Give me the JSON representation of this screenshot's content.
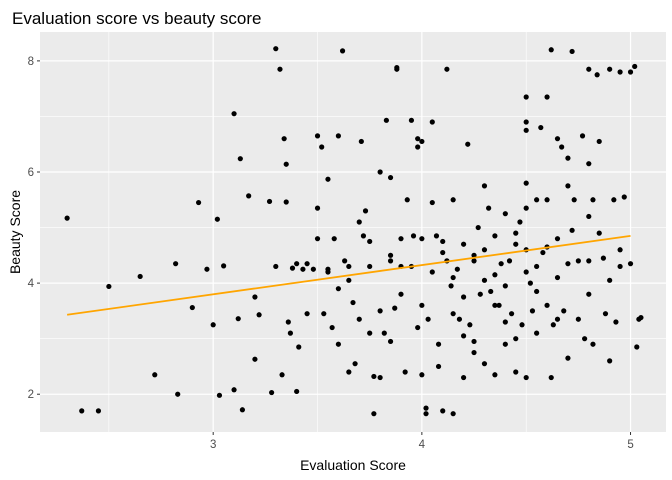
{
  "chart_data": {
    "type": "scatter",
    "title": "Evaluation score vs beauty score",
    "xlabel": "Evaluation Score",
    "ylabel": "Beauty Score",
    "xlim": [
      2.17,
      5.17
    ],
    "ylim": [
      1.32,
      8.52
    ],
    "x_ticks": [
      3,
      4,
      5
    ],
    "y_ticks": [
      2,
      4,
      6,
      8
    ],
    "x_tick_labels": [
      "3",
      "4",
      "5"
    ],
    "y_tick_labels": [
      "2",
      "4",
      "6",
      "8"
    ],
    "grid": true,
    "background": "#ebebeb",
    "grid_color": "#ffffff",
    "point_color": "#000000",
    "trend_color": "#ffa500",
    "trend_line": {
      "x": [
        2.3,
        5.0
      ],
      "y": [
        3.43,
        4.85
      ]
    },
    "points": [
      [
        2.3,
        5.17
      ],
      [
        2.37,
        1.7
      ],
      [
        2.45,
        1.7
      ],
      [
        2.5,
        3.94
      ],
      [
        2.65,
        4.12
      ],
      [
        2.72,
        2.35
      ],
      [
        2.82,
        4.35
      ],
      [
        2.83,
        2.0
      ],
      [
        2.9,
        3.56
      ],
      [
        2.93,
        5.45
      ],
      [
        2.97,
        4.25
      ],
      [
        3.0,
        3.25
      ],
      [
        3.02,
        5.15
      ],
      [
        3.03,
        1.98
      ],
      [
        3.05,
        4.31
      ],
      [
        3.1,
        2.08
      ],
      [
        3.1,
        7.05
      ],
      [
        3.12,
        3.36
      ],
      [
        3.13,
        6.24
      ],
      [
        3.14,
        1.72
      ],
      [
        3.17,
        5.57
      ],
      [
        3.2,
        3.75
      ],
      [
        3.2,
        2.63
      ],
      [
        3.22,
        3.43
      ],
      [
        3.27,
        5.47
      ],
      [
        3.28,
        2.03
      ],
      [
        3.3,
        4.3
      ],
      [
        3.3,
        8.22
      ],
      [
        3.32,
        7.85
      ],
      [
        3.33,
        2.35
      ],
      [
        3.34,
        6.6
      ],
      [
        3.35,
        6.14
      ],
      [
        3.35,
        5.46
      ],
      [
        3.36,
        3.3
      ],
      [
        3.37,
        3.1
      ],
      [
        3.38,
        4.27
      ],
      [
        3.4,
        4.35
      ],
      [
        3.4,
        2.05
      ],
      [
        3.41,
        2.85
      ],
      [
        3.43,
        4.25
      ],
      [
        3.45,
        4.35
      ],
      [
        3.45,
        3.45
      ],
      [
        3.48,
        4.25
      ],
      [
        3.5,
        5.35
      ],
      [
        3.5,
        4.8
      ],
      [
        3.5,
        6.65
      ],
      [
        3.52,
        6.45
      ],
      [
        3.53,
        3.45
      ],
      [
        3.55,
        4.25
      ],
      [
        3.55,
        5.87
      ],
      [
        3.57,
        3.2
      ],
      [
        3.58,
        4.8
      ],
      [
        3.6,
        6.65
      ],
      [
        3.6,
        2.9
      ],
      [
        3.62,
        8.18
      ],
      [
        3.63,
        4.4
      ],
      [
        3.65,
        2.4
      ],
      [
        3.65,
        4.3
      ],
      [
        3.67,
        3.65
      ],
      [
        3.68,
        2.55
      ],
      [
        3.7,
        3.35
      ],
      [
        3.71,
        6.55
      ],
      [
        3.72,
        4.85
      ],
      [
        3.73,
        5.3
      ],
      [
        3.75,
        3.1
      ],
      [
        3.75,
        4.75
      ],
      [
        3.77,
        2.32
      ],
      [
        3.77,
        1.65
      ],
      [
        3.8,
        6.0
      ],
      [
        3.8,
        2.3
      ],
      [
        3.82,
        3.1
      ],
      [
        3.83,
        6.93
      ],
      [
        3.85,
        4.4
      ],
      [
        3.85,
        5.9
      ],
      [
        3.87,
        3.55
      ],
      [
        3.88,
        7.88
      ],
      [
        3.88,
        7.85
      ],
      [
        3.9,
        4.3
      ],
      [
        3.9,
        3.8
      ],
      [
        3.92,
        2.4
      ],
      [
        3.93,
        5.5
      ],
      [
        3.95,
        6.93
      ],
      [
        3.96,
        4.85
      ],
      [
        3.98,
        6.6
      ],
      [
        3.98,
        6.45
      ],
      [
        4.0,
        4.8
      ],
      [
        4.0,
        6.55
      ],
      [
        4.0,
        2.35
      ],
      [
        4.02,
        1.75
      ],
      [
        4.02,
        1.65
      ],
      [
        4.03,
        3.35
      ],
      [
        4.05,
        5.45
      ],
      [
        4.05,
        6.9
      ],
      [
        4.07,
        4.85
      ],
      [
        4.08,
        2.9
      ],
      [
        4.08,
        2.5
      ],
      [
        4.1,
        4.75
      ],
      [
        4.1,
        1.7
      ],
      [
        4.12,
        4.4
      ],
      [
        4.12,
        7.85
      ],
      [
        4.14,
        3.95
      ],
      [
        4.15,
        1.65
      ],
      [
        4.15,
        5.5
      ],
      [
        4.17,
        4.25
      ],
      [
        4.18,
        3.35
      ],
      [
        4.2,
        4.7
      ],
      [
        4.2,
        2.3
      ],
      [
        4.22,
        6.5
      ],
      [
        4.23,
        3.25
      ],
      [
        4.25,
        4.5
      ],
      [
        4.25,
        2.95
      ],
      [
        4.27,
        5.0
      ],
      [
        4.28,
        3.8
      ],
      [
        4.3,
        4.6
      ],
      [
        4.3,
        2.55
      ],
      [
        4.32,
        5.35
      ],
      [
        4.33,
        3.85
      ],
      [
        4.35,
        4.85
      ],
      [
        4.35,
        2.35
      ],
      [
        4.37,
        3.6
      ],
      [
        4.38,
        4.35
      ],
      [
        4.4,
        2.9
      ],
      [
        4.4,
        5.25
      ],
      [
        4.42,
        4.4
      ],
      [
        4.43,
        3.45
      ],
      [
        4.45,
        4.7
      ],
      [
        4.45,
        2.4
      ],
      [
        4.47,
        5.1
      ],
      [
        4.48,
        3.25
      ],
      [
        4.5,
        7.35
      ],
      [
        4.5,
        6.9
      ],
      [
        4.5,
        6.75
      ],
      [
        4.5,
        5.8
      ],
      [
        4.5,
        4.6
      ],
      [
        4.5,
        2.3
      ],
      [
        4.52,
        4.0
      ],
      [
        4.53,
        3.5
      ],
      [
        4.55,
        5.5
      ],
      [
        4.55,
        3.1
      ],
      [
        4.57,
        6.8
      ],
      [
        4.58,
        4.55
      ],
      [
        4.6,
        7.35
      ],
      [
        4.6,
        5.5
      ],
      [
        4.62,
        8.2
      ],
      [
        4.62,
        2.3
      ],
      [
        4.63,
        3.25
      ],
      [
        4.65,
        6.6
      ],
      [
        4.65,
        4.8
      ],
      [
        4.67,
        6.45
      ],
      [
        4.68,
        3.5
      ],
      [
        4.7,
        6.25
      ],
      [
        4.7,
        2.65
      ],
      [
        4.72,
        8.17
      ],
      [
        4.72,
        4.95
      ],
      [
        4.73,
        5.5
      ],
      [
        4.75,
        3.35
      ],
      [
        4.77,
        6.65
      ],
      [
        4.78,
        3.0
      ],
      [
        4.8,
        7.85
      ],
      [
        4.8,
        6.15
      ],
      [
        4.8,
        4.4
      ],
      [
        4.82,
        5.5
      ],
      [
        4.82,
        2.9
      ],
      [
        4.84,
        7.75
      ],
      [
        4.85,
        6.55
      ],
      [
        4.87,
        4.45
      ],
      [
        4.88,
        3.45
      ],
      [
        4.9,
        7.85
      ],
      [
        4.9,
        2.6
      ],
      [
        4.92,
        5.5
      ],
      [
        4.93,
        3.3
      ],
      [
        4.95,
        7.8
      ],
      [
        4.95,
        4.3
      ],
      [
        4.97,
        5.55
      ],
      [
        5.0,
        7.8
      ],
      [
        5.0,
        4.35
      ],
      [
        5.02,
        7.9
      ],
      [
        5.03,
        2.85
      ],
      [
        5.04,
        3.35
      ],
      [
        5.05,
        3.38
      ],
      [
        4.45,
        4.9
      ],
      [
        4.35,
        4.15
      ],
      [
        4.25,
        4.4
      ],
      [
        4.15,
        4.1
      ],
      [
        4.05,
        4.2
      ],
      [
        3.95,
        4.3
      ],
      [
        3.85,
        4.5
      ],
      [
        3.75,
        4.3
      ],
      [
        3.65,
        4.05
      ],
      [
        3.55,
        4.2
      ],
      [
        4.55,
        4.3
      ],
      [
        4.65,
        4.1
      ],
      [
        4.75,
        4.4
      ],
      [
        4.85,
        4.9
      ],
      [
        4.95,
        4.6
      ],
      [
        4.6,
        4.65
      ],
      [
        4.4,
        3.95
      ],
      [
        4.2,
        3.75
      ],
      [
        4.0,
        3.6
      ],
      [
        3.8,
        3.5
      ],
      [
        4.3,
        4.05
      ],
      [
        4.5,
        4.2
      ],
      [
        4.7,
        4.35
      ],
      [
        4.1,
        4.55
      ],
      [
        3.9,
        4.8
      ],
      [
        4.6,
        3.6
      ],
      [
        4.4,
        3.3
      ],
      [
        4.2,
        3.05
      ],
      [
        4.8,
        3.8
      ],
      [
        4.55,
        3.85
      ],
      [
        4.35,
        3.6
      ],
      [
        4.15,
        3.45
      ],
      [
        3.98,
        3.2
      ],
      [
        4.65,
        3.35
      ],
      [
        4.45,
        3.0
      ],
      [
        4.25,
        2.75
      ],
      [
        3.85,
        2.95
      ],
      [
        4.7,
        5.75
      ],
      [
        4.5,
        5.35
      ],
      [
        4.3,
        5.75
      ],
      [
        3.7,
        5.1
      ],
      [
        3.6,
        3.9
      ],
      [
        4.8,
        5.2
      ],
      [
        4.9,
        4.05
      ]
    ]
  }
}
